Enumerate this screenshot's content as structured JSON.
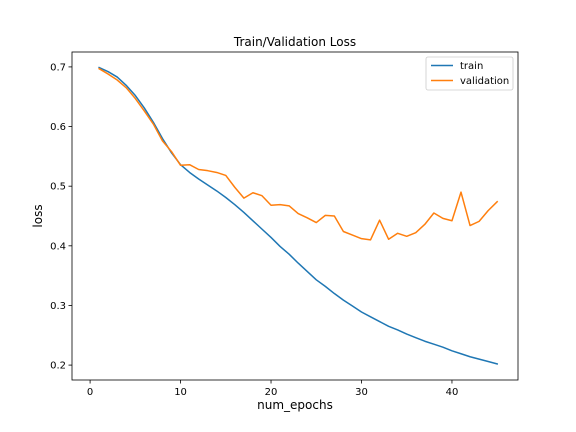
{
  "chart_data": {
    "type": "line",
    "title": "Train/Validation Loss",
    "xlabel": "num_epochs",
    "ylabel": "loss",
    "xlim": [
      -2,
      47.3
    ],
    "ylim": [
      0.175,
      0.725
    ],
    "xticks": [
      0,
      10,
      20,
      30,
      40
    ],
    "yticks": [
      0.2,
      0.3,
      0.4,
      0.5,
      0.6,
      0.7
    ],
    "xtick_labels": [
      "0",
      "10",
      "20",
      "30",
      "40"
    ],
    "ytick_labels": [
      "0.2",
      "0.3",
      "0.4",
      "0.5",
      "0.6",
      "0.7"
    ],
    "grid": false,
    "legend_position": "top-right",
    "x": [
      1,
      2,
      3,
      4,
      5,
      6,
      7,
      8,
      9,
      10,
      11,
      12,
      13,
      14,
      15,
      16,
      17,
      18,
      19,
      20,
      21,
      22,
      23,
      24,
      25,
      26,
      27,
      28,
      29,
      30,
      31,
      32,
      33,
      34,
      35,
      36,
      37,
      38,
      39,
      40,
      41,
      42,
      43,
      44,
      45
    ],
    "series": [
      {
        "name": "train",
        "color": "#1f77b4",
        "values": [
          0.699,
          0.692,
          0.683,
          0.669,
          0.652,
          0.631,
          0.607,
          0.58,
          0.556,
          0.536,
          0.523,
          0.512,
          0.502,
          0.492,
          0.481,
          0.469,
          0.456,
          0.442,
          0.428,
          0.414,
          0.399,
          0.386,
          0.371,
          0.357,
          0.343,
          0.332,
          0.32,
          0.309,
          0.299,
          0.289,
          0.281,
          0.273,
          0.265,
          0.259,
          0.252,
          0.246,
          0.24,
          0.235,
          0.23,
          0.224,
          0.219,
          0.214,
          0.21,
          0.206,
          0.202
        ]
      },
      {
        "name": "validation",
        "color": "#ff7f0e",
        "values": [
          0.697,
          0.688,
          0.678,
          0.665,
          0.647,
          0.626,
          0.604,
          0.576,
          0.558,
          0.535,
          0.536,
          0.528,
          0.526,
          0.523,
          0.518,
          0.498,
          0.48,
          0.489,
          0.484,
          0.468,
          0.469,
          0.467,
          0.454,
          0.447,
          0.439,
          0.451,
          0.45,
          0.424,
          0.418,
          0.412,
          0.41,
          0.443,
          0.411,
          0.421,
          0.416,
          0.422,
          0.436,
          0.455,
          0.446,
          0.442,
          0.49,
          0.434,
          0.441,
          0.459,
          0.474
        ]
      }
    ]
  }
}
